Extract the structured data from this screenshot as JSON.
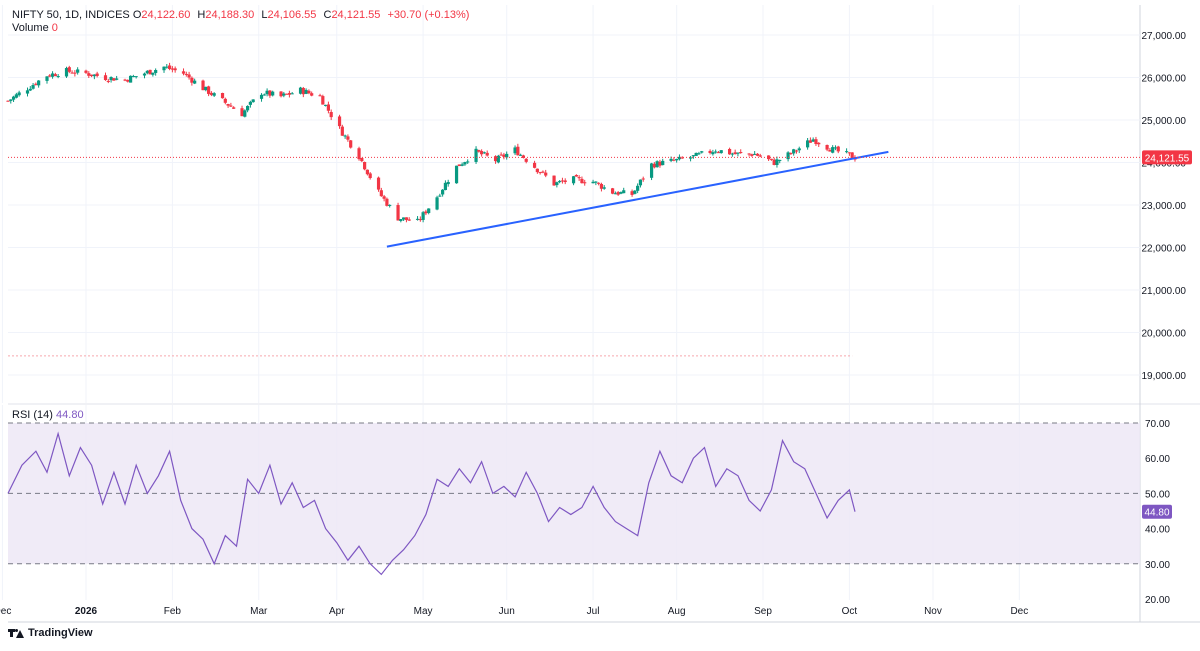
{
  "header": {
    "symbol": "NIFTY 50, 1D, INDICES",
    "open_label": "O",
    "open": "24,122.60",
    "high_label": "H",
    "high": "24,188.30",
    "low_label": "L",
    "low": "24,106.55",
    "close_label": "C",
    "close": "24,121.55",
    "change": "+30.70 (+0.13%)",
    "volume_label": "Volume",
    "volume": "0"
  },
  "rsi_header": {
    "label": "RSI (14)",
    "value": "44.80"
  },
  "brand": {
    "name": "TradingView"
  },
  "colors": {
    "up": "#089981",
    "down": "#f23645",
    "trendline": "#2962ff",
    "rsi": "#7e57c2",
    "rsi_band": "#ede7f6",
    "last_price_bg": "#f23645",
    "rsi_badge_bg": "#7e57c2"
  },
  "chart_data": [
    {
      "type": "candlestick",
      "title": "",
      "ylim": [
        18300,
        27400
      ],
      "y_ticks": [
        19000,
        20000,
        21000,
        22000,
        23000,
        24000,
        25000,
        26000,
        27000
      ],
      "y_tick_labels": [
        "19,000.00",
        "20,000.00",
        "21,000.00",
        "22,000.00",
        "23,000.00",
        "24,000.00",
        "25,000.00",
        "26,000.00",
        "27,000.00"
      ],
      "x_ticks": [
        "Dec",
        "2026",
        "Feb",
        "Mar",
        "Apr",
        "May",
        "Jun",
        "Jul",
        "Aug",
        "Sep",
        "Oct",
        "Nov",
        "Dec"
      ],
      "last_price": 24121.55,
      "last_price_label": "24,121.55",
      "dashed_level": 19450,
      "trendline": {
        "start": [
          "2026-03-19",
          22020
        ],
        "end": [
          "2026-09-15",
          24250
        ]
      },
      "close_path": [
        [
          "2025-11-03",
          25450
        ],
        [
          "2025-11-10",
          25750
        ],
        [
          "2025-11-17",
          26050
        ],
        [
          "2025-11-24",
          26150
        ],
        [
          "2025-12-01",
          26100
        ],
        [
          "2025-12-08",
          26000
        ],
        [
          "2025-12-15",
          25950
        ],
        [
          "2025-12-22",
          26100
        ],
        [
          "2025-12-29",
          26250
        ],
        [
          "2026-01-05",
          26100
        ],
        [
          "2026-01-12",
          25750
        ],
        [
          "2026-01-19",
          25450
        ],
        [
          "2026-01-26",
          25150
        ],
        [
          "2026-02-02",
          25650
        ],
        [
          "2026-02-09",
          25550
        ],
        [
          "2026-02-16",
          25700
        ],
        [
          "2026-02-23",
          25550
        ],
        [
          "2026-03-02",
          24800
        ],
        [
          "2026-03-09",
          24150
        ],
        [
          "2026-03-16",
          23300
        ],
        [
          "2026-03-23",
          22700
        ],
        [
          "2026-03-30",
          22600
        ],
        [
          "2026-04-06",
          23200
        ],
        [
          "2026-04-13",
          23900
        ],
        [
          "2026-04-20",
          24250
        ],
        [
          "2026-04-27",
          24050
        ],
        [
          "2026-05-04",
          24300
        ],
        [
          "2026-05-11",
          23900
        ],
        [
          "2026-05-18",
          23500
        ],
        [
          "2026-05-25",
          23600
        ],
        [
          "2026-06-01",
          23550
        ],
        [
          "2026-06-08",
          23300
        ],
        [
          "2026-06-15",
          23250
        ],
        [
          "2026-06-22",
          23950
        ],
        [
          "2026-07-01",
          24050
        ],
        [
          "2026-07-08",
          24150
        ],
        [
          "2026-07-15",
          24300
        ],
        [
          "2026-07-22",
          24200
        ],
        [
          "2026-07-29",
          24200
        ],
        [
          "2026-08-05",
          24000
        ],
        [
          "2026-08-12",
          24250
        ],
        [
          "2026-08-19",
          24550
        ],
        [
          "2026-08-26",
          24300
        ],
        [
          "2026-09-03",
          24121.55
        ]
      ]
    },
    {
      "type": "line",
      "title": "RSI (14)",
      "ylim": [
        20,
        70
      ],
      "y_ticks": [
        20,
        30,
        40,
        50,
        60,
        70
      ],
      "y_tick_labels": [
        "20.00",
        "30.00",
        "40.00",
        "50.00",
        "60.00",
        "70.00"
      ],
      "bands": [
        30,
        50,
        70
      ],
      "last_value": 44.8,
      "last_value_label": "44.80",
      "series": [
        {
          "values": [
            [
              "2025-11-03",
              50
            ],
            [
              "2025-11-08",
              58
            ],
            [
              "2025-11-13",
              62
            ],
            [
              "2025-11-17",
              56
            ],
            [
              "2025-11-21",
              67
            ],
            [
              "2025-11-25",
              55
            ],
            [
              "2025-11-29",
              63
            ],
            [
              "2025-12-03",
              58
            ],
            [
              "2025-12-07",
              47
            ],
            [
              "2025-12-11",
              56
            ],
            [
              "2025-12-15",
              47
            ],
            [
              "2025-12-19",
              58
            ],
            [
              "2025-12-23",
              50
            ],
            [
              "2025-12-27",
              55
            ],
            [
              "2025-12-31",
              62
            ],
            [
              "2026-01-04",
              48
            ],
            [
              "2026-01-08",
              40
            ],
            [
              "2026-01-12",
              37
            ],
            [
              "2026-01-16",
              30
            ],
            [
              "2026-01-20",
              38
            ],
            [
              "2026-01-24",
              35
            ],
            [
              "2026-01-28",
              54
            ],
            [
              "2026-02-01",
              50
            ],
            [
              "2026-02-05",
              58
            ],
            [
              "2026-02-09",
              47
            ],
            [
              "2026-02-13",
              53
            ],
            [
              "2026-02-17",
              46
            ],
            [
              "2026-02-21",
              48
            ],
            [
              "2026-02-25",
              40
            ],
            [
              "2026-03-01",
              36
            ],
            [
              "2026-03-05",
              31
            ],
            [
              "2026-03-09",
              35
            ],
            [
              "2026-03-13",
              30
            ],
            [
              "2026-03-17",
              27
            ],
            [
              "2026-03-21",
              31
            ],
            [
              "2026-03-25",
              34
            ],
            [
              "2026-03-29",
              38
            ],
            [
              "2026-04-02",
              44
            ],
            [
              "2026-04-06",
              54
            ],
            [
              "2026-04-10",
              52
            ],
            [
              "2026-04-14",
              57
            ],
            [
              "2026-04-18",
              53
            ],
            [
              "2026-04-22",
              59
            ],
            [
              "2026-04-26",
              50
            ],
            [
              "2026-04-30",
              52
            ],
            [
              "2026-05-04",
              49
            ],
            [
              "2026-05-08",
              56
            ],
            [
              "2026-05-12",
              50
            ],
            [
              "2026-05-16",
              42
            ],
            [
              "2026-05-20",
              46
            ],
            [
              "2026-05-24",
              44
            ],
            [
              "2026-05-28",
              46
            ],
            [
              "2026-06-01",
              52
            ],
            [
              "2026-06-05",
              46
            ],
            [
              "2026-06-09",
              42
            ],
            [
              "2026-06-13",
              40
            ],
            [
              "2026-06-17",
              38
            ],
            [
              "2026-06-21",
              53
            ],
            [
              "2026-06-25",
              62
            ],
            [
              "2026-06-29",
              55
            ],
            [
              "2026-07-03",
              53
            ],
            [
              "2026-07-07",
              60
            ],
            [
              "2026-07-11",
              63
            ],
            [
              "2026-07-15",
              52
            ],
            [
              "2026-07-19",
              57
            ],
            [
              "2026-07-23",
              55
            ],
            [
              "2026-07-27",
              48
            ],
            [
              "2026-07-31",
              45
            ],
            [
              "2026-08-04",
              51
            ],
            [
              "2026-08-08",
              65
            ],
            [
              "2026-08-12",
              59
            ],
            [
              "2026-08-16",
              57
            ],
            [
              "2026-08-20",
              50
            ],
            [
              "2026-08-24",
              43
            ],
            [
              "2026-08-28",
              48
            ],
            [
              "2026-09-01",
              51
            ],
            [
              "2026-09-03",
              44.8
            ]
          ]
        }
      ]
    }
  ]
}
